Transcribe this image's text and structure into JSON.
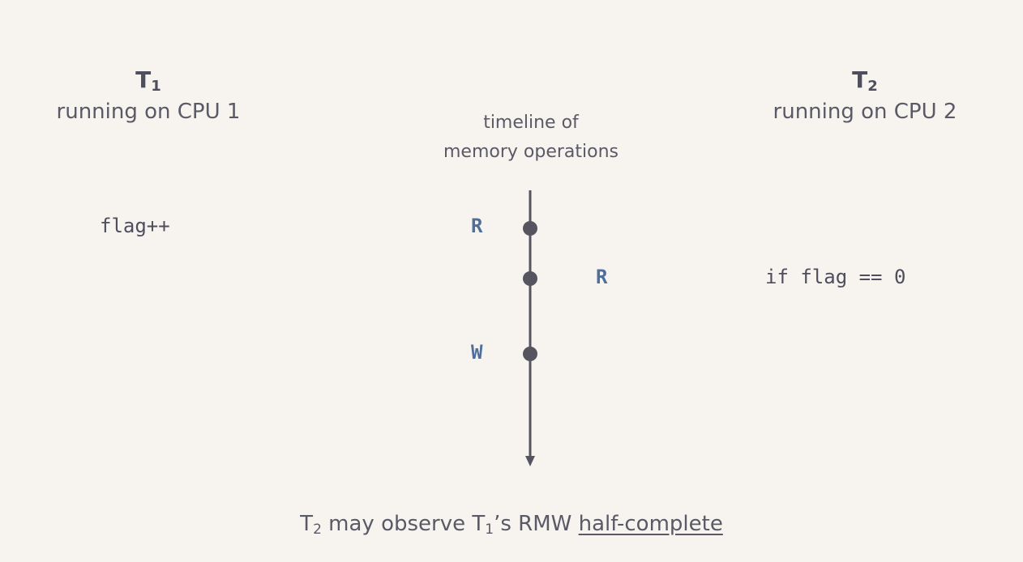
{
  "thread1": {
    "name": "T",
    "subscript": "1",
    "subtitle": "running on CPU 1",
    "code": "flag++"
  },
  "thread2": {
    "name": "T",
    "subscript": "2",
    "subtitle": "running on CPU 2",
    "code": "if flag == 0"
  },
  "timeline": {
    "label_line1": "timeline of",
    "label_line2": "memory operations",
    "operations": [
      {
        "label": "R",
        "thread": "T1",
        "side": "left"
      },
      {
        "label": "R",
        "thread": "T2",
        "side": "right"
      },
      {
        "label": "W",
        "thread": "T1",
        "side": "left"
      }
    ]
  },
  "caption": {
    "t_prefix": "T",
    "t_sub_a": "2",
    "middle": " may observe T",
    "t_sub_b": "1",
    "rest": "’s RMW ",
    "emphasis": "half-complete"
  },
  "colors": {
    "background": "#f7f4f0",
    "text": "#5a5a66",
    "operation_label": "#4f6f9a",
    "timeline": "#55555f"
  }
}
